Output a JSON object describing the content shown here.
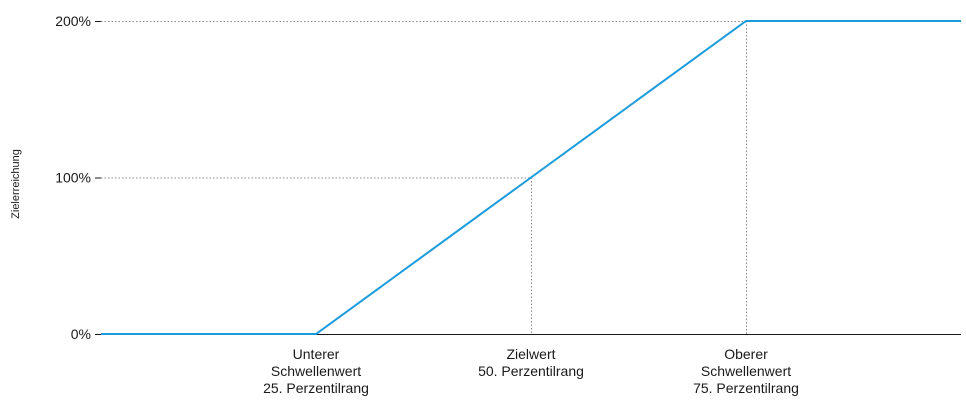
{
  "chart_data": {
    "type": "line",
    "title": "",
    "xlabel": "",
    "ylabel": "Zielerreichung",
    "x_categories": [
      {
        "lines": [
          "Unterer",
          "Schwellenwert",
          "25. Perzentilrang"
        ],
        "percentile": 25
      },
      {
        "lines": [
          "Zielwert",
          "50. Perzentilrang"
        ],
        "percentile": 50
      },
      {
        "lines": [
          "Oberer",
          "Schwellenwert",
          "75. Perzentilrang"
        ],
        "percentile": 75
      }
    ],
    "y_ticks": [
      {
        "label": "0%",
        "value": 0
      },
      {
        "label": "100%",
        "value": 100
      },
      {
        "label": "200%",
        "value": 200
      }
    ],
    "xlim": [
      0,
      100
    ],
    "ylim": [
      0,
      200
    ],
    "series": [
      {
        "color": "#1a9bdc",
        "x": [
          0,
          25,
          50,
          75,
          100
        ],
        "y": [
          0,
          0,
          100,
          200,
          200
        ]
      }
    ],
    "reference_lines_color": "#888888",
    "axis_color": "#1a1a1a",
    "legend": "none",
    "grid": false
  }
}
